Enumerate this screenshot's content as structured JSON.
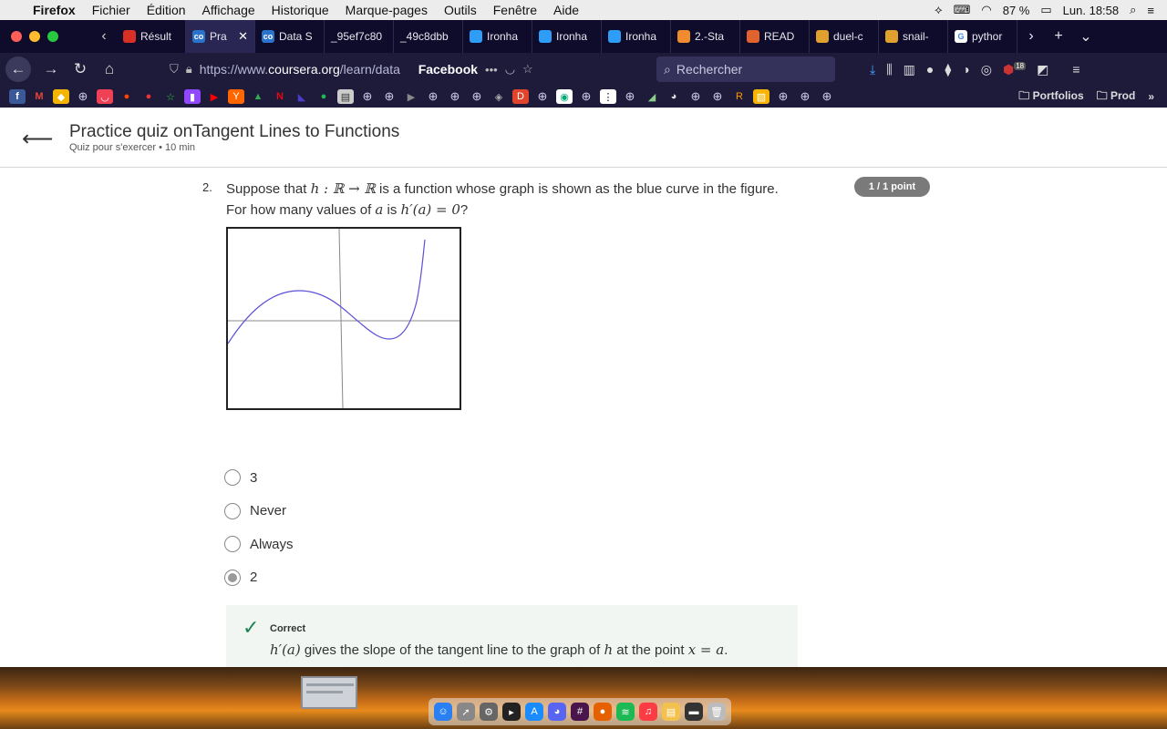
{
  "menubar": {
    "app": "Firefox",
    "items": [
      "Fichier",
      "Édition",
      "Affichage",
      "Historique",
      "Marque-pages",
      "Outils",
      "Fenêtre",
      "Aide"
    ],
    "battery": "87 %",
    "clock": "Lun. 18:58"
  },
  "tabs": [
    {
      "label": "Résult",
      "icon": "gmail-icon",
      "color": "#d93025",
      "active": false
    },
    {
      "label": "Pra",
      "icon": "coursera-icon",
      "color": "#2a73cc",
      "active": true
    },
    {
      "label": "Data S",
      "icon": "coursera-icon",
      "color": "#2a73cc",
      "active": false
    },
    {
      "label": "_95ef7c80",
      "icon": "",
      "color": "",
      "active": false
    },
    {
      "label": "_49c8dbb",
      "icon": "",
      "color": "",
      "active": false
    },
    {
      "label": "Ironha",
      "icon": "ironhack-icon",
      "color": "#2e9df7",
      "active": false
    },
    {
      "label": "Ironha",
      "icon": "ironhack-icon",
      "color": "#2e9df7",
      "active": false
    },
    {
      "label": "Ironha",
      "icon": "ironhack-icon",
      "color": "#2e9df7",
      "active": false
    },
    {
      "label": "2.-Sta",
      "icon": "loading-icon",
      "color": "#f08b2e",
      "active": false
    },
    {
      "label": "READ",
      "icon": "document-icon",
      "color": "#e0632e",
      "active": false
    },
    {
      "label": "duel-c",
      "icon": "pencil-icon",
      "color": "#e0a02e",
      "active": false
    },
    {
      "label": "snail-",
      "icon": "pencil-icon",
      "color": "#e0a02e",
      "active": false
    },
    {
      "label": "pythor",
      "icon": "google-icon",
      "color": "#ffffff",
      "active": false
    }
  ],
  "navbar": {
    "url_prefix": "https://www.",
    "url_domain": "coursera.org",
    "url_rest": "/learn/data",
    "page_tag": "Facebook",
    "search_placeholder": "Rechercher",
    "badge_count": "18"
  },
  "bookmarks": {
    "folders": [
      "Portfolios",
      "Prod"
    ]
  },
  "quiz": {
    "title": "Practice quiz onTangent Lines to Functions",
    "subtitle": "Quiz pour s'exercer • 10  min",
    "question_number": "2.",
    "question_line1_pre": "Suppose that ",
    "question_line1_math": "h : ℝ → ℝ",
    "question_line1_post": " is a function whose graph is shown as the blue curve in the figure.",
    "question_line2_pre": "For how many values of ",
    "question_line2_var": "a",
    "question_line2_mid": " is ",
    "question_line2_math": "h′(a) = 0",
    "question_line2_post": "?",
    "score": "1 / 1 point",
    "options": [
      {
        "label": "3",
        "checked": false
      },
      {
        "label": "Never",
        "checked": false
      },
      {
        "label": "Always",
        "checked": false
      },
      {
        "label": "2",
        "checked": true
      }
    ],
    "feedback_title": "Correct",
    "feedback_math1": "h′(a)",
    "feedback_text": " gives the slope of the tangent line to the graph of ",
    "feedback_math2": "h",
    "feedback_text2": " at the point ",
    "feedback_math3": "x = a",
    "feedback_text3": "."
  },
  "colors": {
    "curve": "#5b4fd6",
    "correct": "#1f8354",
    "badge": "#7a7a7a"
  }
}
